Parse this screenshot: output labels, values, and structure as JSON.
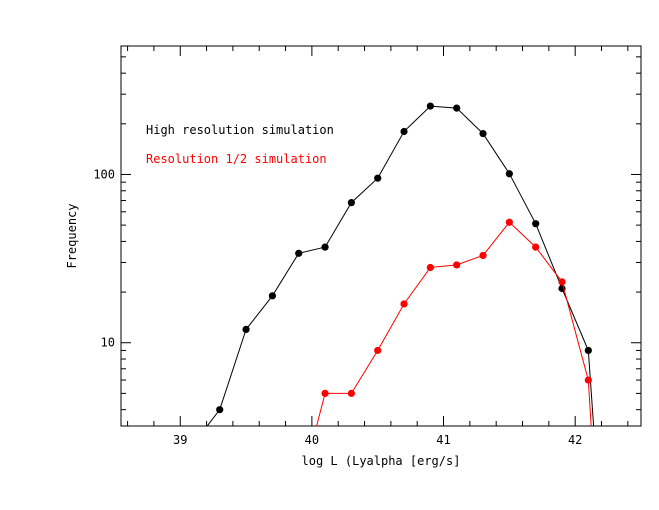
{
  "chart_data": {
    "type": "line",
    "title": "",
    "xlabel": "log L (Lyalpha [erg/s]",
    "ylabel": "Frequency",
    "xlim": [
      38.55,
      42.5
    ],
    "ylim": [
      3.2,
      580
    ],
    "yscale": "log",
    "x_ticks_labeled": [
      "39",
      "40",
      "41",
      "42"
    ],
    "y_ticks_labeled": [
      "10",
      "100"
    ],
    "grid": false,
    "legend": "top-left",
    "series": [
      {
        "name": "High resolution simulation",
        "color": "#000000",
        "x": [
          39.1,
          39.3,
          39.5,
          39.7,
          39.9,
          40.1,
          40.3,
          40.5,
          40.7,
          40.9,
          41.1,
          41.3,
          41.5,
          41.7,
          41.9,
          42.1,
          42.15
        ],
        "y": [
          2.5,
          4,
          12,
          19,
          34,
          37,
          68,
          95,
          180,
          255,
          248,
          175,
          101,
          51,
          21,
          9,
          2.5
        ]
      },
      {
        "name": "Resolution 1/2 simulation",
        "color": "#ff0000",
        "x": [
          40.0,
          40.1,
          40.3,
          40.5,
          40.7,
          40.9,
          41.1,
          41.3,
          41.5,
          41.7,
          41.9,
          42.1,
          42.13
        ],
        "y": [
          2.5,
          5,
          5,
          9,
          17,
          28,
          29,
          33,
          52,
          37,
          23,
          6,
          2.5
        ]
      }
    ]
  }
}
